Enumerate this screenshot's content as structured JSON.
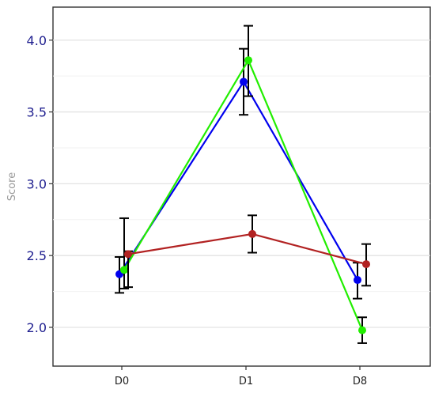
{
  "chart_data": {
    "type": "line",
    "title": "",
    "xlabel": "",
    "ylabel": "Score",
    "categories": [
      "D0",
      "D1",
      "D8"
    ],
    "ylim": [
      1.73,
      4.23
    ],
    "yticks": [
      2.0,
      2.5,
      3.0,
      3.5,
      4.0
    ],
    "ytick_labels": [
      "2.0",
      "2.5",
      "3.0",
      "3.5",
      "4.0"
    ],
    "grid": true,
    "legend": "none",
    "series": [
      {
        "color": "#0000ee",
        "values": [
          2.37,
          3.71,
          2.33
        ],
        "err_low": [
          2.24,
          3.48,
          2.2
        ],
        "err_high": [
          2.49,
          3.94,
          2.45
        ]
      },
      {
        "color": "#22ee00",
        "values": [
          2.4,
          3.86,
          1.98
        ],
        "err_low": [
          2.27,
          3.61,
          1.89
        ],
        "err_high": [
          2.76,
          4.1,
          2.07
        ]
      },
      {
        "color": "#b22222",
        "values": [
          2.51,
          2.65,
          2.44
        ],
        "err_low": [
          2.28,
          2.52,
          2.29
        ],
        "err_high": [
          2.53,
          2.78,
          2.58
        ]
      }
    ]
  }
}
